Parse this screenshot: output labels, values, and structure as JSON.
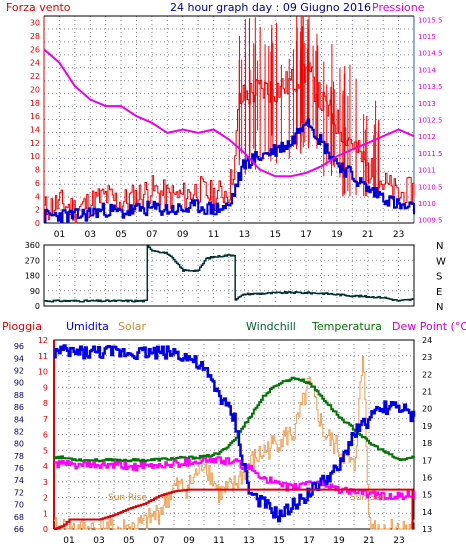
{
  "header": {
    "left_label": "Forza vento",
    "title": "24 hour graph day : 09 Giugno 2016",
    "right_label": "Pressione"
  },
  "colors": {
    "wind": "#ee0000",
    "gust_bar": "#ff0000",
    "avg_wind": "#0000dd",
    "pressure": "#ee00ee",
    "direction": "#003333",
    "humidity": "#0000ee",
    "solar": "#f0a050",
    "windchill": "#006633",
    "temperature": "#007700",
    "dewpoint": "#ff00ff",
    "rain": "#dd0000",
    "left_axis": "#dd0000",
    "right_axis": "#dd00dd",
    "frame": "#000000",
    "grid": "#8888aa"
  },
  "chart_data": [
    {
      "type": "line",
      "title": "24 hour graph day : 09 Giugno 2016",
      "x_ticks": [
        "01",
        "03",
        "05",
        "07",
        "09",
        "11",
        "13",
        "15",
        "17",
        "19",
        "21",
        "23"
      ],
      "x_range": [
        0,
        24
      ],
      "left_axis": {
        "label": "Forza vento",
        "ticks": [
          "0",
          "2",
          "4",
          "6",
          "8",
          "10",
          "12",
          "14",
          "16",
          "18",
          "20",
          "22",
          "24",
          "26",
          "28",
          "30"
        ],
        "range": [
          0,
          31
        ]
      },
      "right_axis": {
        "label": "Pressione",
        "ticks": [
          "1009.5",
          "1010",
          "1010.5",
          "1011",
          "1011.5",
          "1012",
          "1012.5",
          "1013",
          "1013.5",
          "1014",
          "1014.5",
          "1015",
          "1015.5"
        ],
        "range": [
          1009.4,
          1015.6
        ]
      },
      "series": [
        {
          "key": "wind",
          "axis": "left",
          "points": [
            [
              0,
              2
            ],
            [
              1,
              3
            ],
            [
              2,
              2
            ],
            [
              3,
              3
            ],
            [
              4,
              4
            ],
            [
              5,
              3
            ],
            [
              6,
              4
            ],
            [
              7,
              5
            ],
            [
              8,
              4
            ],
            [
              9,
              4
            ],
            [
              10,
              5
            ],
            [
              11,
              4
            ],
            [
              12,
              5
            ],
            [
              12.4,
              10
            ],
            [
              12.6,
              18
            ],
            [
              13,
              19
            ],
            [
              14,
              20
            ],
            [
              15,
              20
            ],
            [
              16,
              21
            ],
            [
              17,
              23
            ],
            [
              18,
              18
            ],
            [
              19,
              15
            ],
            [
              20,
              12
            ],
            [
              21,
              8
            ],
            [
              22,
              6
            ],
            [
              23,
              4
            ],
            [
              24,
              5
            ]
          ]
        },
        {
          "key": "avg_wind",
          "axis": "left",
          "points": [
            [
              0,
              1
            ],
            [
              1,
              1.2
            ],
            [
              2,
              1
            ],
            [
              3,
              1.5
            ],
            [
              4,
              2
            ],
            [
              5,
              1.5
            ],
            [
              6,
              2
            ],
            [
              7,
              2.2
            ],
            [
              8,
              2
            ],
            [
              9,
              2
            ],
            [
              10,
              2.5
            ],
            [
              11,
              2
            ],
            [
              12,
              2.5
            ],
            [
              12.5,
              6
            ],
            [
              13,
              9
            ],
            [
              14,
              10
            ],
            [
              15,
              11
            ],
            [
              16,
              12
            ],
            [
              17,
              16
            ],
            [
              18,
              12
            ],
            [
              19,
              9
            ],
            [
              20,
              7
            ],
            [
              21,
              5
            ],
            [
              22,
              4
            ],
            [
              23,
              2.5
            ],
            [
              24,
              2
            ]
          ]
        },
        {
          "key": "pressure",
          "axis": "right",
          "points": [
            [
              0,
              1014.6
            ],
            [
              1,
              1014.2
            ],
            [
              2,
              1013.5
            ],
            [
              3,
              1013.1
            ],
            [
              4,
              1012.9
            ],
            [
              5,
              1012.9
            ],
            [
              6,
              1012.6
            ],
            [
              7,
              1012.4
            ],
            [
              8,
              1012.1
            ],
            [
              9,
              1012.2
            ],
            [
              10,
              1012.1
            ],
            [
              11,
              1012.2
            ],
            [
              12,
              1011.9
            ],
            [
              13,
              1011.5
            ],
            [
              14,
              1011.0
            ],
            [
              15,
              1010.8
            ],
            [
              16,
              1010.8
            ],
            [
              17,
              1010.9
            ],
            [
              18,
              1011.1
            ],
            [
              19,
              1011.4
            ],
            [
              20,
              1011.6
            ],
            [
              21,
              1011.8
            ],
            [
              22,
              1012.0
            ],
            [
              23,
              1012.2
            ],
            [
              24,
              1012.0
            ]
          ]
        }
      ]
    },
    {
      "type": "line",
      "title": "",
      "x_range": [
        0,
        24
      ],
      "left_axis": {
        "label": "",
        "ticks": [
          "0",
          "90",
          "180",
          "270",
          "360"
        ],
        "range": [
          0,
          360
        ]
      },
      "right_labels": [
        "N",
        "W",
        "S",
        "E",
        "N"
      ],
      "series": [
        {
          "key": "direction",
          "points": [
            [
              0,
              30
            ],
            [
              6.6,
              30
            ],
            [
              6.7,
              350
            ],
            [
              7,
              330
            ],
            [
              8,
              310
            ],
            [
              9,
              210
            ],
            [
              10,
              210
            ],
            [
              10.5,
              280
            ],
            [
              11,
              290
            ],
            [
              12,
              300
            ],
            [
              12.3,
              300
            ],
            [
              12.4,
              40
            ],
            [
              13,
              70
            ],
            [
              16,
              80
            ],
            [
              18,
              75
            ],
            [
              20,
              60
            ],
            [
              22,
              50
            ],
            [
              23,
              30
            ],
            [
              24,
              40
            ]
          ]
        }
      ]
    },
    {
      "type": "line",
      "title": "",
      "x_range": [
        0,
        24
      ],
      "header_labels": {
        "rain": "Pioggia",
        "humidity": "Umidita",
        "solar": "Solar",
        "windchill": "Windchill",
        "temperature": "Temperatura",
        "dewpoint": "Dew Point (°C)"
      },
      "left_axis": {
        "label": "Pioggia",
        "ticks": [
          "0",
          "1",
          "2",
          "3",
          "4",
          "5",
          "6",
          "7",
          "8",
          "9",
          "10",
          "11",
          "12"
        ],
        "range": [
          0,
          12
        ]
      },
      "humidity_axis": {
        "label": "Umidita",
        "ticks": [
          "66",
          "68",
          "70",
          "72",
          "74",
          "76",
          "78",
          "80",
          "82",
          "84",
          "86",
          "88",
          "90",
          "92",
          "94",
          "96"
        ],
        "range": [
          66,
          97
        ]
      },
      "right_axis": {
        "label": "Dew Point (°C)",
        "ticks": [
          "13",
          "14",
          "15",
          "16",
          "17",
          "18",
          "19",
          "20",
          "21",
          "22",
          "23",
          "24"
        ],
        "range": [
          13,
          24
        ]
      },
      "annotations": {
        "sunrise": "Sun Rise",
        "sunset": "Sun Set"
      },
      "series": [
        {
          "key": "rain",
          "axis": "left",
          "points": [
            [
              0,
              0
            ],
            [
              0.6,
              0.2
            ],
            [
              1,
              0.6
            ],
            [
              3,
              0.6
            ],
            [
              4,
              0.9
            ],
            [
              5,
              1.3
            ],
            [
              6,
              1.6
            ],
            [
              7,
              2.1
            ],
            [
              8,
              2.4
            ],
            [
              9,
              2.5
            ],
            [
              12,
              2.5
            ],
            [
              16,
              2.5
            ],
            [
              20,
              2.5
            ],
            [
              23.8,
              2.5
            ],
            [
              23.9,
              0
            ]
          ]
        },
        {
          "key": "humidity",
          "axis": "humidity",
          "points": [
            [
              0,
              95
            ],
            [
              2,
              95
            ],
            [
              4,
              95
            ],
            [
              6,
              95
            ],
            [
              8,
              95
            ],
            [
              9,
              94
            ],
            [
              10,
              92
            ],
            [
              11,
              88
            ],
            [
              12,
              84
            ],
            [
              12.5,
              78
            ],
            [
              13,
              72
            ],
            [
              14,
              70
            ],
            [
              15,
              68
            ],
            [
              16,
              70
            ],
            [
              17,
              72
            ],
            [
              18,
              74
            ],
            [
              19,
              76
            ],
            [
              20,
              82
            ],
            [
              21,
              84
            ],
            [
              22,
              86
            ],
            [
              23,
              86
            ],
            [
              24,
              84
            ]
          ]
        },
        {
          "key": "temperature",
          "axis": "right",
          "points": [
            [
              0,
              17.2
            ],
            [
              2,
              17.0
            ],
            [
              4,
              17.0
            ],
            [
              6,
              17.0
            ],
            [
              8,
              17.1
            ],
            [
              10,
              17.2
            ],
            [
              11,
              17.4
            ],
            [
              12,
              18.2
            ],
            [
              13,
              19.5
            ],
            [
              14,
              20.8
            ],
            [
              15,
              21.5
            ],
            [
              16,
              21.8
            ],
            [
              17,
              21.5
            ],
            [
              18,
              20.5
            ],
            [
              19,
              19.5
            ],
            [
              20,
              18.8
            ],
            [
              21,
              18.0
            ],
            [
              22,
              17.5
            ],
            [
              23,
              17.0
            ],
            [
              24,
              17.2
            ]
          ]
        },
        {
          "key": "dewpoint",
          "axis": "right",
          "points": [
            [
              0,
              16.8
            ],
            [
              2,
              16.7
            ],
            [
              4,
              16.7
            ],
            [
              6,
              16.6
            ],
            [
              8,
              16.8
            ],
            [
              10,
              17.0
            ],
            [
              11,
              17.0
            ],
            [
              12,
              16.9
            ],
            [
              13,
              16.5
            ],
            [
              14,
              16.0
            ],
            [
              15,
              15.5
            ],
            [
              16,
              15.4
            ],
            [
              17,
              15.8
            ],
            [
              18,
              15.6
            ],
            [
              19,
              15.3
            ],
            [
              20,
              15.2
            ],
            [
              21,
              15.0
            ],
            [
              22,
              14.9
            ],
            [
              23,
              14.9
            ],
            [
              24,
              15.0
            ]
          ]
        },
        {
          "key": "solar",
          "axis": "right",
          "points": [
            [
              0,
              13
            ],
            [
              5,
              13
            ],
            [
              6,
              13.3
            ],
            [
              7,
              14.0
            ],
            [
              8,
              15.4
            ],
            [
              9,
              15.5
            ],
            [
              10,
              17.0
            ],
            [
              11,
              15.0
            ],
            [
              12,
              15.5
            ],
            [
              13,
              16.8
            ],
            [
              14,
              17.5
            ],
            [
              15,
              18.2
            ],
            [
              16,
              18.6
            ],
            [
              17,
              21.5
            ],
            [
              18,
              18.5
            ],
            [
              19,
              17.6
            ],
            [
              20,
              16.5
            ],
            [
              20.6,
              23.4
            ],
            [
              21,
              13.2
            ],
            [
              22,
              13
            ],
            [
              24,
              13
            ]
          ]
        }
      ]
    }
  ]
}
